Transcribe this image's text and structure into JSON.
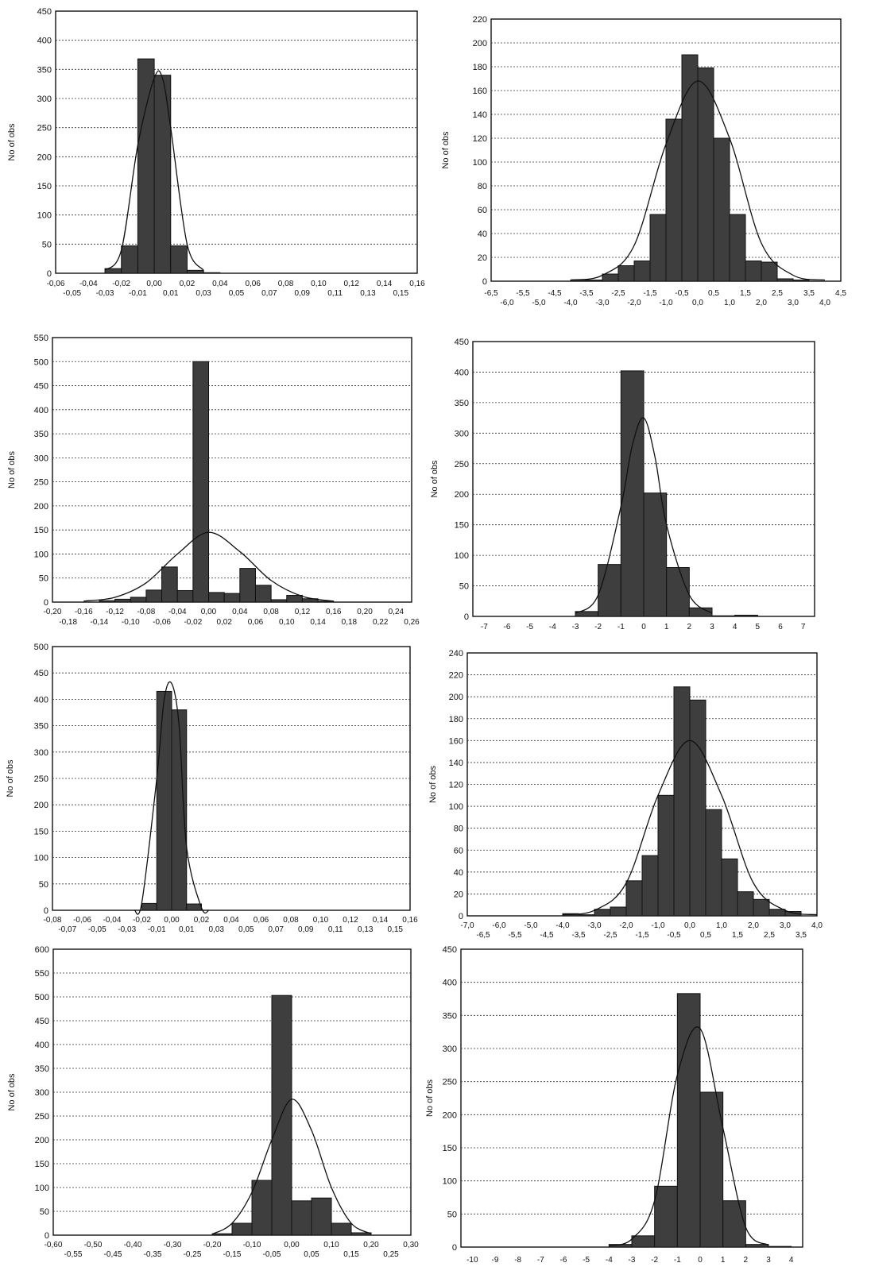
{
  "chart_data": [
    {
      "type": "bar",
      "ylabel": "No of obs",
      "ylim": [
        0,
        450
      ],
      "yticks": [
        0,
        50,
        100,
        150,
        200,
        250,
        300,
        350,
        400,
        450
      ],
      "xlim": [
        -0.06,
        0.16
      ],
      "xtick_row1": [
        "-0,06",
        "-0,04",
        "-0,02",
        "0,00",
        "0,02",
        "0,04",
        "0,06",
        "0,08",
        "0,10",
        "0,12",
        "0,14",
        "0,16"
      ],
      "xtick_row2": [
        "-0,05",
        "-0,03",
        "-0,01",
        "0,01",
        "0,03",
        "0,05",
        "0,07",
        "0,09",
        "0,11",
        "0,13",
        "0,15"
      ],
      "bin_width": 0.01,
      "bins": [
        -0.03,
        -0.02,
        -0.01,
        0.0,
        0.01,
        0.02,
        0.03
      ],
      "values": [
        8,
        47,
        368,
        340,
        47,
        5,
        1
      ],
      "curve_x": [
        -0.03,
        -0.02,
        -0.01,
        0.0,
        0.005,
        0.01,
        0.02,
        0.03
      ],
      "curve_y": [
        5,
        40,
        220,
        335,
        335,
        250,
        50,
        5
      ],
      "grid": true
    },
    {
      "type": "bar",
      "ylabel": "No of obs",
      "ylim": [
        0,
        220
      ],
      "yticks": [
        0,
        20,
        40,
        60,
        80,
        100,
        120,
        140,
        160,
        180,
        200,
        220
      ],
      "xlim": [
        -6.5,
        4.5
      ],
      "xtick_row1": [
        "-6,5",
        "-5,5",
        "-4,5",
        "-3,5",
        "-2,5",
        "-1,5",
        "-0,5",
        "0,5",
        "1,5",
        "2,5",
        "3,5",
        "4,5"
      ],
      "xtick_row2": [
        "-6,0",
        "-5,0",
        "-4,0",
        "-3,0",
        "-2,0",
        "-1,0",
        "0,0",
        "1,0",
        "2,0",
        "3,0",
        "4,0"
      ],
      "bin_width": 0.5,
      "bins": [
        -4.0,
        -3.5,
        -3.0,
        -2.5,
        -2.0,
        -1.5,
        -1.0,
        -0.5,
        0.0,
        0.5,
        1.0,
        1.5,
        2.0,
        2.5,
        3.0
      ],
      "values": [
        1,
        1,
        6,
        13,
        17,
        56,
        136,
        190,
        179,
        120,
        56,
        17,
        16,
        2,
        1
      ],
      "curve_x": [
        -4.0,
        -3.0,
        -2.0,
        -1.0,
        0.0,
        1.0,
        2.0,
        3.0,
        4.0
      ],
      "curve_y": [
        1,
        5,
        30,
        115,
        168,
        120,
        32,
        5,
        1
      ],
      "grid": true
    },
    {
      "type": "bar",
      "ylabel": "No of obs",
      "ylim": [
        0,
        550
      ],
      "yticks": [
        0,
        50,
        100,
        150,
        200,
        250,
        300,
        350,
        400,
        450,
        500,
        550
      ],
      "xlim": [
        -0.2,
        0.26
      ],
      "xtick_row1": [
        "-0,20",
        "-0,16",
        "-0,12",
        "-0,08",
        "-0,04",
        "0,00",
        "0,04",
        "0,08",
        "0,12",
        "0,16",
        "0,20",
        "0,24"
      ],
      "xtick_row2": [
        "-0,18",
        "-0,14",
        "-0,10",
        "-0,06",
        "-0,02",
        "0,02",
        "0,06",
        "0,10",
        "0,14",
        "0,18",
        "0,22",
        "0,26"
      ],
      "bin_width": 0.02,
      "bins": [
        -0.14,
        -0.12,
        -0.1,
        -0.08,
        -0.06,
        -0.04,
        -0.02,
        0.0,
        0.02,
        0.04,
        0.06,
        0.08,
        0.1,
        0.12,
        0.14
      ],
      "values": [
        3,
        6,
        10,
        25,
        73,
        24,
        500,
        20,
        18,
        70,
        35,
        5,
        14,
        7,
        2
      ],
      "curve_x": [
        -0.16,
        -0.12,
        -0.08,
        -0.04,
        0.0,
        0.04,
        0.08,
        0.12,
        0.16
      ],
      "curve_y": [
        2,
        10,
        40,
        100,
        145,
        105,
        45,
        12,
        2
      ],
      "grid": true
    },
    {
      "type": "bar",
      "ylabel": "No of obs",
      "ylim": [
        0,
        450
      ],
      "yticks": [
        0,
        50,
        100,
        150,
        200,
        250,
        300,
        350,
        400,
        450
      ],
      "xlim": [
        -7.5,
        7.5
      ],
      "xtick_row1": [
        "-7",
        "-6",
        "-5",
        "-4",
        "-3",
        "-2",
        "-1",
        "0",
        "1",
        "2",
        "3",
        "4",
        "5",
        "6",
        "7"
      ],
      "xtick_row2": [],
      "bin_width": 1,
      "bins": [
        -3,
        -2,
        -1,
        0,
        1,
        2,
        3,
        4
      ],
      "values": [
        8,
        85,
        402,
        202,
        80,
        14,
        1,
        2
      ],
      "curve_x": [
        -3,
        -2,
        -1,
        -0.5,
        0,
        0.5,
        1,
        2,
        3
      ],
      "curve_y": [
        5,
        35,
        180,
        280,
        325,
        260,
        150,
        35,
        5
      ],
      "grid": true
    },
    {
      "type": "bar",
      "ylabel": "No of obs",
      "ylim": [
        0,
        500
      ],
      "yticks": [
        0,
        50,
        100,
        150,
        200,
        250,
        300,
        350,
        400,
        450,
        500
      ],
      "xlim": [
        -0.08,
        0.16
      ],
      "xtick_row1": [
        "-0,08",
        "-0,06",
        "-0,04",
        "-0,02",
        "0,00",
        "0,02",
        "0,04",
        "0,06",
        "0,08",
        "0,10",
        "0,12",
        "0,14",
        "0,16"
      ],
      "xtick_row2": [
        "-0,07",
        "-0,05",
        "-0,03",
        "-0,01",
        "0,01",
        "0,03",
        "0,05",
        "0,07",
        "0,09",
        "0,11",
        "0,13",
        "0,15"
      ],
      "bin_width": 0.01,
      "bins": [
        -0.02,
        -0.01,
        0.0,
        0.01
      ],
      "values": [
        13,
        415,
        380,
        12
      ],
      "curve_x": [
        -0.025,
        -0.02,
        -0.01,
        -0.005,
        0.0,
        0.005,
        0.01,
        0.02,
        0.025
      ],
      "curve_y": [
        0,
        15,
        250,
        400,
        430,
        350,
        120,
        5,
        0
      ],
      "grid": true
    },
    {
      "type": "bar",
      "ylabel": "No of obs",
      "ylim": [
        0,
        240
      ],
      "yticks": [
        0,
        20,
        40,
        60,
        80,
        100,
        120,
        140,
        160,
        180,
        200,
        220,
        240
      ],
      "xlim": [
        -7.0,
        4.0
      ],
      "xtick_row1": [
        "-7,0",
        "-6,0",
        "-5,0",
        "-4,0",
        "-3,0",
        "-2,0",
        "-1,0",
        "0,0",
        "1,0",
        "2,0",
        "3,0",
        "4,0"
      ],
      "xtick_row2": [
        "-6,5",
        "-5,5",
        "-4,5",
        "-3,5",
        "-2,5",
        "-1,5",
        "-0,5",
        "0,5",
        "1,5",
        "2,5",
        "3,5"
      ],
      "bin_width": 0.5,
      "bins": [
        -4.0,
        -3.5,
        -3.0,
        -2.5,
        -2.0,
        -1.5,
        -1.0,
        -0.5,
        0.0,
        0.5,
        1.0,
        1.5,
        2.0,
        2.5,
        3.0
      ],
      "values": [
        2,
        1,
        6,
        8,
        32,
        55,
        110,
        209,
        197,
        97,
        52,
        22,
        15,
        6,
        4
      ],
      "curve_x": [
        -4.0,
        -3.0,
        -2.0,
        -1.0,
        0.0,
        1.0,
        2.0,
        3.0,
        4.0
      ],
      "curve_y": [
        1,
        5,
        30,
        110,
        160,
        110,
        30,
        5,
        1
      ],
      "grid": true
    },
    {
      "type": "bar",
      "ylabel": "No of obs",
      "ylim": [
        0,
        600
      ],
      "yticks": [
        0,
        50,
        100,
        150,
        200,
        250,
        300,
        350,
        400,
        450,
        500,
        550,
        600
      ],
      "xlim": [
        -0.6,
        0.3
      ],
      "xtick_row1": [
        "-0,60",
        "-0,50",
        "-0,40",
        "-0,30",
        "-0,20",
        "-0,10",
        "0,00",
        "0,10",
        "0,20",
        "0,30"
      ],
      "xtick_row2": [
        "-0,55",
        "-0,45",
        "-0,35",
        "-0,25",
        "-0,15",
        "-0,05",
        "0,05",
        "0,15",
        "0,25"
      ],
      "bin_width": 0.05,
      "bins": [
        -0.2,
        -0.15,
        -0.1,
        -0.05,
        0.0,
        0.05,
        0.1,
        0.15
      ],
      "values": [
        3,
        25,
        115,
        503,
        72,
        78,
        25,
        5
      ],
      "curve_x": [
        -0.2,
        -0.15,
        -0.1,
        -0.05,
        0.0,
        0.05,
        0.1,
        0.15,
        0.2
      ],
      "curve_y": [
        2,
        25,
        90,
        200,
        285,
        220,
        100,
        25,
        3
      ],
      "grid": true
    },
    {
      "type": "bar",
      "ylabel": "No of obs",
      "ylim": [
        0,
        450
      ],
      "yticks": [
        0,
        50,
        100,
        150,
        200,
        250,
        300,
        350,
        400,
        450
      ],
      "xlim": [
        -10.5,
        4.5
      ],
      "xtick_row1": [
        "-10",
        "-9",
        "-8",
        "-7",
        "-6",
        "-5",
        "-4",
        "-3",
        "-2",
        "-1",
        "0",
        "1",
        "2",
        "3",
        "4"
      ],
      "xtick_row2": [],
      "bin_width": 1,
      "bins": [
        -4,
        -3,
        -2,
        -1,
        0,
        1,
        2,
        3
      ],
      "values": [
        4,
        17,
        92,
        383,
        234,
        70,
        4,
        1
      ],
      "curve_x": [
        -4,
        -3,
        -2,
        -1,
        0,
        1,
        2,
        3
      ],
      "curve_y": [
        2,
        12,
        70,
        260,
        330,
        180,
        30,
        3
      ],
      "grid": true
    }
  ]
}
